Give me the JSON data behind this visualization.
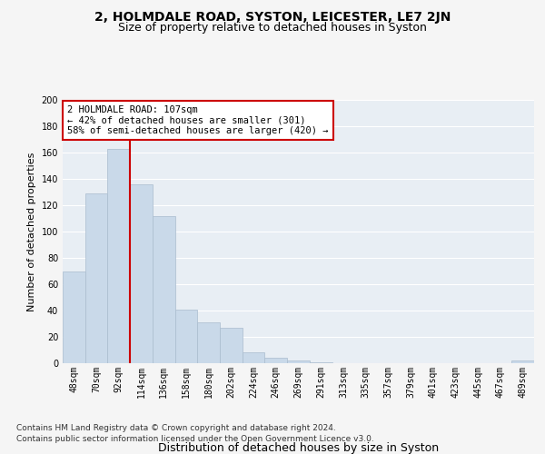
{
  "title": "2, HOLMDALE ROAD, SYSTON, LEICESTER, LE7 2JN",
  "subtitle": "Size of property relative to detached houses in Syston",
  "xlabel": "Distribution of detached houses by size in Syston",
  "ylabel": "Number of detached properties",
  "bar_color": "#c9d9e9",
  "bar_edgecolor": "#aabcce",
  "categories": [
    "48sqm",
    "70sqm",
    "92sqm",
    "114sqm",
    "136sqm",
    "158sqm",
    "180sqm",
    "202sqm",
    "224sqm",
    "246sqm",
    "269sqm",
    "291sqm",
    "313sqm",
    "335sqm",
    "357sqm",
    "379sqm",
    "401sqm",
    "423sqm",
    "445sqm",
    "467sqm",
    "489sqm"
  ],
  "values": [
    70,
    129,
    163,
    136,
    112,
    41,
    31,
    27,
    8,
    4,
    2,
    1,
    0,
    0,
    0,
    0,
    0,
    0,
    0,
    0,
    2
  ],
  "ylim": [
    0,
    200
  ],
  "yticks": [
    0,
    20,
    40,
    60,
    80,
    100,
    120,
    140,
    160,
    180,
    200
  ],
  "vline_color": "#cc0000",
  "vline_x": 2.5,
  "annotation_text": "2 HOLMDALE ROAD: 107sqm\n← 42% of detached houses are smaller (301)\n58% of semi-detached houses are larger (420) →",
  "annotation_box_facecolor": "#ffffff",
  "annotation_box_edgecolor": "#cc0000",
  "footer_line1": "Contains HM Land Registry data © Crown copyright and database right 2024.",
  "footer_line2": "Contains public sector information licensed under the Open Government Licence v3.0.",
  "plot_bg_color": "#e8eef4",
  "fig_bg_color": "#f5f5f5",
  "grid_color": "#ffffff",
  "title_fontsize": 10,
  "subtitle_fontsize": 9,
  "xlabel_fontsize": 9,
  "ylabel_fontsize": 8,
  "tick_fontsize": 7,
  "footer_fontsize": 6.5,
  "annotation_fontsize": 7.5
}
